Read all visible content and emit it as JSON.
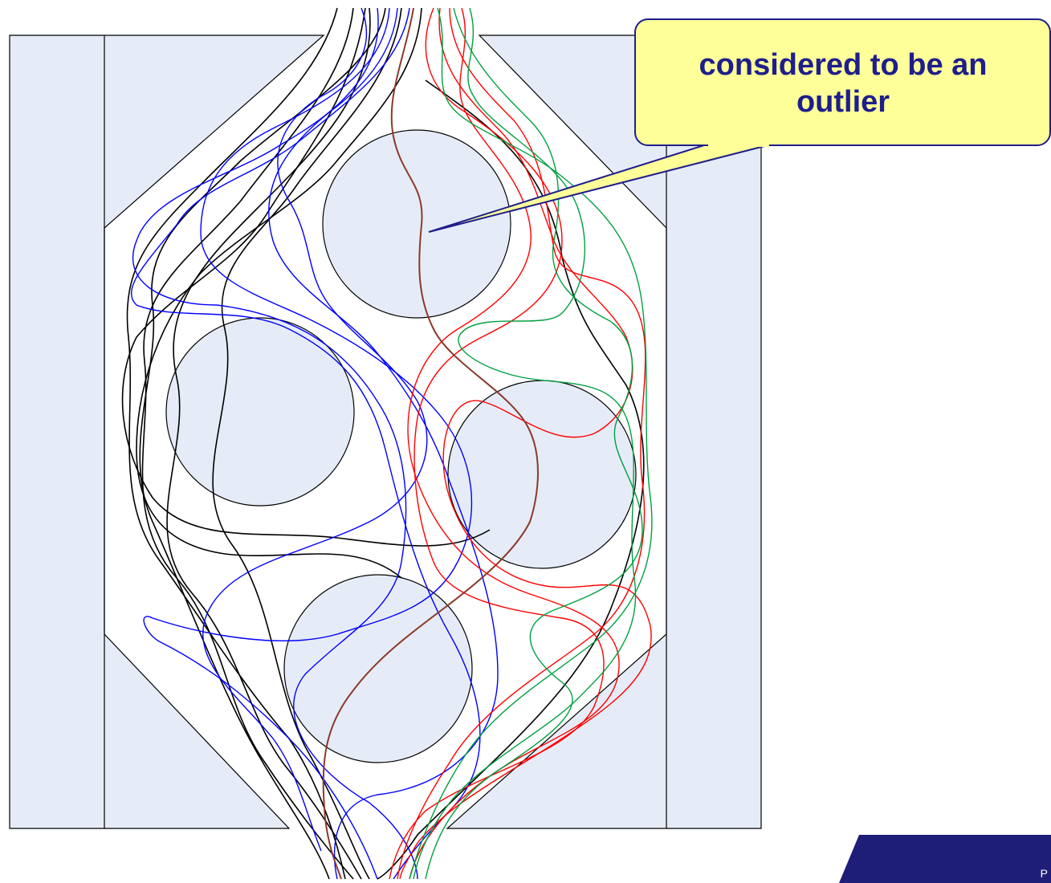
{
  "callout": {
    "text_line1": "considered to be an",
    "text_line2": "outlier",
    "fill": "#ffff99",
    "border": "#1e1e8c"
  },
  "footer": {
    "letter": "P",
    "band_color": "#1e1e78"
  },
  "colors": {
    "obstacle_fill": "#e6ecf7",
    "line": "#000000",
    "paths": [
      "#000000",
      "#0000ff",
      "#ff0000",
      "#00a040",
      "#8b3a2a"
    ]
  },
  "obstacles": [
    "left-wall",
    "right-wall",
    "top-left-wedge",
    "top-right-wedge",
    "bottom-left-wedge",
    "bottom-right-wedge",
    "circle-top",
    "circle-left",
    "circle-right",
    "circle-bottom"
  ],
  "path_groups": [
    {
      "name": "black-paths",
      "color": "#000000"
    },
    {
      "name": "blue-paths",
      "color": "#0000ff"
    },
    {
      "name": "red-paths",
      "color": "#ff0000"
    },
    {
      "name": "green-paths",
      "color": "#00a040"
    },
    {
      "name": "outlier-path",
      "color": "#8b3a2a"
    }
  ]
}
